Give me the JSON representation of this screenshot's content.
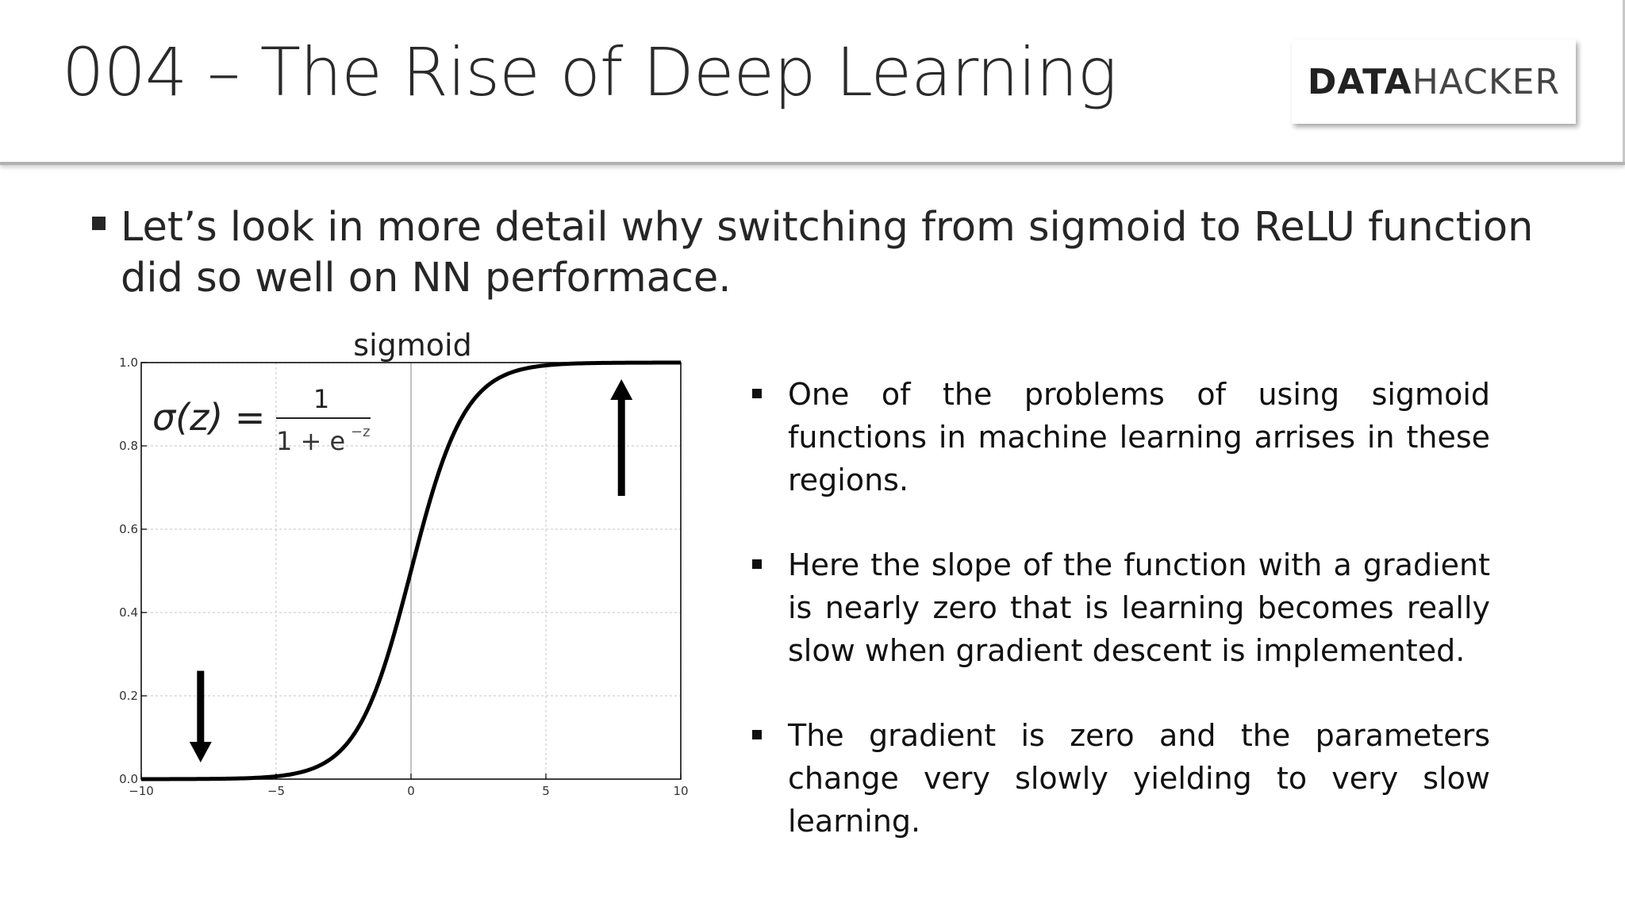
{
  "header": {
    "title": "004 – The Rise of Deep Learning",
    "logo_bold": "DATA",
    "logo_light": "HACKER"
  },
  "main_bullet": "Let’s look in more detail why switching from sigmoid to ReLU function did so well on NN performace.",
  "bullets": [
    "One of the problems of using sigmoid functions in machine learning arrises in these regions.",
    "Here the slope of the function with a gradient is nearly zero that is learning becomes really slow when gradient descent is implemented.",
    "The gradient is zero and the parameters change very slowly yielding to very slow learning."
  ],
  "chart_data": {
    "type": "line",
    "title": "sigmoid",
    "formula": {
      "lhs": "σ(z) =",
      "numerator": "1",
      "denominator": "1 + e",
      "exponent": "−z"
    },
    "function": "sigmoid",
    "xlim": [
      -10,
      10
    ],
    "ylim": [
      0.0,
      1.0
    ],
    "x_ticks": [
      -10,
      -5,
      0,
      5,
      10
    ],
    "x_tick_labels": [
      "−10",
      "−5",
      "0",
      "5",
      "10"
    ],
    "y_ticks": [
      0.0,
      0.2,
      0.4,
      0.6,
      0.8,
      1.0
    ],
    "y_tick_labels": [
      "0.0",
      "0.2",
      "0.4",
      "0.6",
      "0.8",
      "1.0"
    ],
    "grid": true,
    "annotations": [
      {
        "type": "arrow",
        "direction": "down",
        "x": -7.8,
        "y_from": 0.26,
        "y_to": 0.04
      },
      {
        "type": "arrow",
        "direction": "up",
        "x": 7.8,
        "y_from": 0.68,
        "y_to": 0.96
      }
    ]
  }
}
